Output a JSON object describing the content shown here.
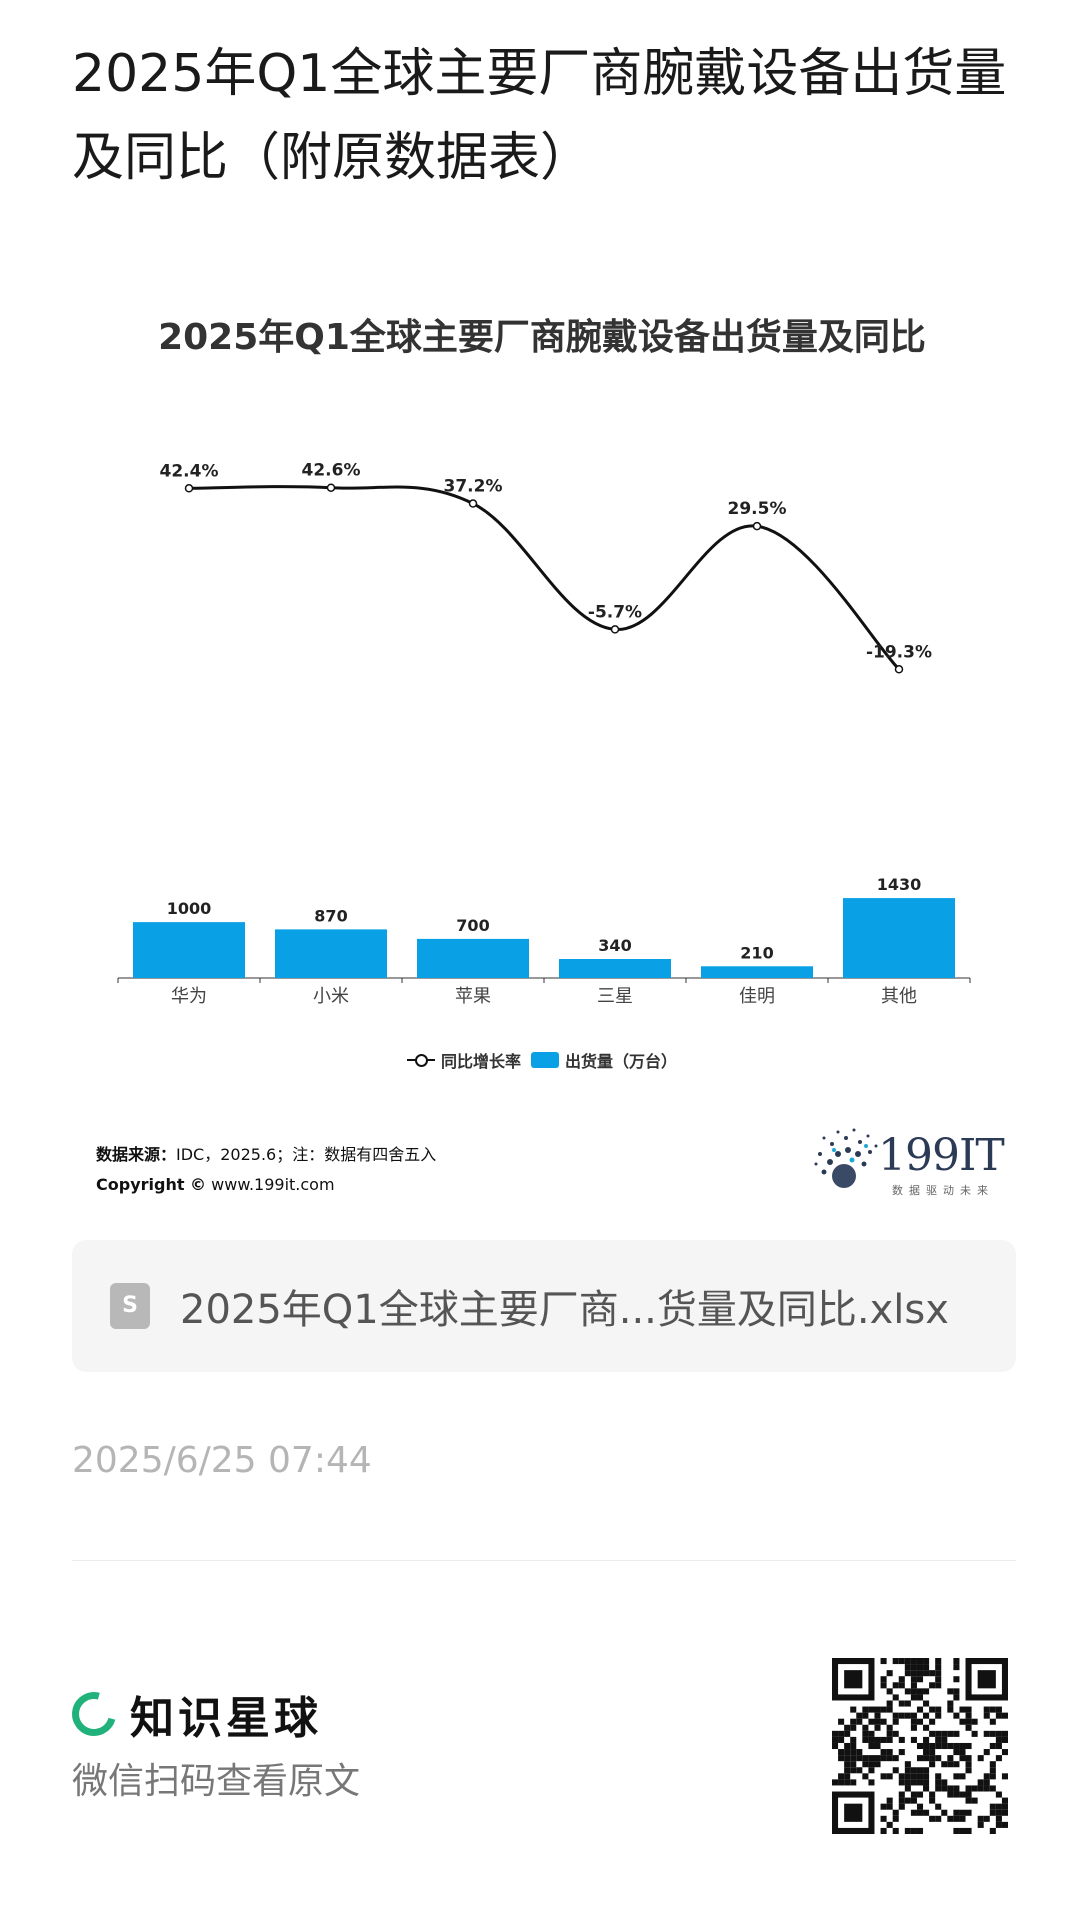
{
  "page": {
    "title": "2025年Q1全球主要厂商腕戴设备出货量及同比（附原数据表）"
  },
  "chart_data": {
    "type": "bar",
    "title": "2025年Q1全球主要厂商腕戴设备出货量及同比",
    "categories": [
      "华为",
      "小米",
      "苹果",
      "三星",
      "佳明",
      "其他"
    ],
    "series": [
      {
        "name": "出货量（万台）",
        "type": "bar",
        "values": [
          1000,
          870,
          700,
          340,
          210,
          1430
        ],
        "labels": [
          "1000",
          "870",
          "700",
          "340",
          "210",
          "1430"
        ],
        "color": "#0aa0e6"
      },
      {
        "name": "同比增长率",
        "type": "line",
        "values": [
          42.4,
          42.6,
          37.2,
          -5.7,
          29.5,
          -19.3
        ],
        "labels": [
          "42.4%",
          "42.6%",
          "37.2%",
          "-5.7%",
          "29.5%",
          "-19.3%"
        ],
        "color": "#111111",
        "smooth": true
      }
    ],
    "legend_position": "bottom",
    "grid": false,
    "ylim_bar": [
      0,
      2100
    ],
    "ylim_line": [
      -25,
      50
    ]
  },
  "legend": {
    "line_label": "同比增长率",
    "bar_label": "出货量（万台）"
  },
  "source": {
    "label": "数据来源：",
    "text": "IDC，2025.6；注：数据有四舍五入",
    "copyright_label": "Copyright ©",
    "copyright_text": "www.199it.com"
  },
  "brand": {
    "name": "199IT",
    "slogan": "数据驱动未来"
  },
  "attachment": {
    "icon": "spreadsheet-file-icon",
    "file_name": "2025年Q1全球主要厂商...货量及同比.xlsx"
  },
  "meta": {
    "timestamp": "2025/6/25 07:44"
  },
  "footer": {
    "platform_name": "知识星球",
    "scan_hint": "微信扫码查看原文",
    "accent": "#20b27a"
  }
}
